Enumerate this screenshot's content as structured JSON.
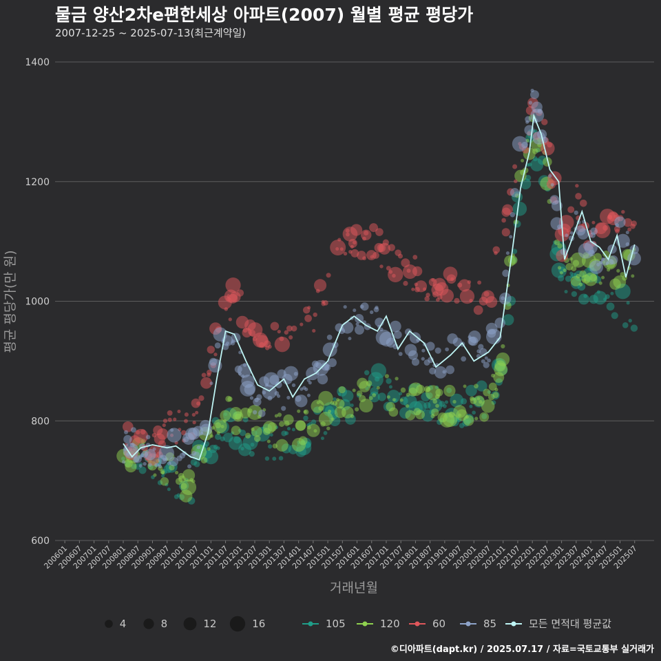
{
  "title": "물금 양산2차e편한세상 아파트(2007) 월별 평균 평당가",
  "subtitle": "2007-12-25 ~ 2025-07-13(최근계약일)",
  "credit": "©디아파트(dapt.kr) / 2025.07.17 / 자료=국토교통부 실거래가",
  "colors": {
    "background": "#2b2b2d",
    "grid": "#5e5e5e",
    "s105": "#1f9e89",
    "s120": "#8fd14f",
    "s60": "#e0575b",
    "s85": "#8ea3c9",
    "avg": "#bff5f5"
  },
  "chart_data": {
    "type": "scatter",
    "xlabel": "거래년월",
    "ylabel": "평균 평당가(만 원)",
    "ylim": [
      600,
      1400
    ],
    "yticks": [
      600,
      800,
      1000,
      1200,
      1400
    ],
    "xlim": [
      "2005-09",
      "2026-03"
    ],
    "xticks": [
      "200601",
      "200607",
      "200701",
      "200707",
      "200801",
      "200807",
      "200901",
      "200907",
      "201001",
      "201007",
      "201101",
      "201107",
      "201201",
      "201207",
      "201301",
      "201307",
      "201401",
      "201407",
      "201501",
      "201507",
      "201601",
      "201607",
      "201701",
      "201707",
      "201801",
      "201807",
      "201901",
      "201907",
      "202001",
      "202007",
      "202101",
      "202107",
      "202201",
      "202207",
      "202301",
      "202307",
      "202401",
      "202407",
      "202501",
      "202507"
    ],
    "grid": "horizontal",
    "size_legend": {
      "title": "",
      "values": [
        4,
        8,
        12,
        16
      ]
    },
    "series": [
      {
        "name": "105",
        "key": "s105",
        "anchors": [
          [
            2008.0,
            760
          ],
          [
            2009.0,
            720
          ],
          [
            2009.8,
            700
          ],
          [
            2010.3,
            690
          ],
          [
            2010.8,
            760
          ],
          [
            2011.5,
            790
          ],
          [
            2012.5,
            770
          ],
          [
            2013.5,
            760
          ],
          [
            2014.5,
            790
          ],
          [
            2015.5,
            820
          ],
          [
            2016.5,
            860
          ],
          [
            2017.5,
            840
          ],
          [
            2018.5,
            830
          ],
          [
            2019.5,
            820
          ],
          [
            2020.5,
            840
          ],
          [
            2021.0,
            900
          ],
          [
            2021.5,
            1150
          ],
          [
            2022.0,
            1270
          ],
          [
            2022.5,
            1210
          ],
          [
            2023.0,
            1040
          ],
          [
            2024.0,
            1030
          ],
          [
            2025.0,
            990
          ],
          [
            2025.5,
            985
          ]
        ]
      },
      {
        "name": "120",
        "key": "s120",
        "anchors": [
          [
            2008.0,
            760
          ],
          [
            2009.0,
            730
          ],
          [
            2009.8,
            710
          ],
          [
            2010.3,
            690
          ],
          [
            2010.8,
            770
          ],
          [
            2011.5,
            810
          ],
          [
            2012.5,
            800
          ],
          [
            2013.5,
            780
          ],
          [
            2014.5,
            800
          ],
          [
            2015.5,
            830
          ],
          [
            2016.5,
            850
          ],
          [
            2017.5,
            840
          ],
          [
            2018.5,
            830
          ],
          [
            2019.5,
            830
          ],
          [
            2020.5,
            830
          ],
          [
            2021.0,
            910
          ],
          [
            2021.5,
            1170
          ],
          [
            2022.0,
            1280
          ],
          [
            2022.5,
            1220
          ],
          [
            2023.0,
            1050
          ],
          [
            2024.0,
            1060
          ],
          [
            2025.0,
            1050
          ],
          [
            2025.5,
            1065
          ]
        ]
      },
      {
        "name": "60",
        "key": "s60",
        "anchors": [
          [
            2008.0,
            760
          ],
          [
            2009.0,
            765
          ],
          [
            2009.8,
            790
          ],
          [
            2010.3,
            780
          ],
          [
            2010.8,
            860
          ],
          [
            2011.3,
            950
          ],
          [
            2011.8,
            1010
          ],
          [
            2012.5,
            950
          ],
          [
            2013.5,
            940
          ],
          [
            2014.5,
            980
          ],
          [
            2015.5,
            1090
          ],
          [
            2016.5,
            1100
          ],
          [
            2017.5,
            1060
          ],
          [
            2018.5,
            1030
          ],
          [
            2019.5,
            1010
          ],
          [
            2020.5,
            1000
          ],
          [
            2021.0,
            1120
          ],
          [
            2021.5,
            1240
          ],
          [
            2022.0,
            1320
          ],
          [
            2022.5,
            1260
          ],
          [
            2023.0,
            1100
          ],
          [
            2023.5,
            1170
          ],
          [
            2024.0,
            1110
          ],
          [
            2024.5,
            1140
          ],
          [
            2025.0,
            1130
          ],
          [
            2025.5,
            1120
          ]
        ]
      },
      {
        "name": "85",
        "key": "s85",
        "anchors": [
          [
            2008.0,
            760
          ],
          [
            2009.0,
            750
          ],
          [
            2009.8,
            760
          ],
          [
            2010.3,
            750
          ],
          [
            2010.8,
            800
          ],
          [
            2011.3,
            930
          ],
          [
            2011.8,
            930
          ],
          [
            2012.5,
            840
          ],
          [
            2013.5,
            850
          ],
          [
            2014.5,
            860
          ],
          [
            2015.5,
            960
          ],
          [
            2016.5,
            990
          ],
          [
            2017.5,
            930
          ],
          [
            2018.5,
            900
          ],
          [
            2019.5,
            910
          ],
          [
            2020.5,
            920
          ],
          [
            2021.0,
            980
          ],
          [
            2021.5,
            1230
          ],
          [
            2022.0,
            1330
          ],
          [
            2022.5,
            1250
          ],
          [
            2023.0,
            1100
          ],
          [
            2023.5,
            1150
          ],
          [
            2024.0,
            1090
          ],
          [
            2024.5,
            1080
          ],
          [
            2025.0,
            1110
          ],
          [
            2025.5,
            1100
          ]
        ]
      },
      {
        "name": "모든 면적대 평균값",
        "key": "avg",
        "line": true,
        "anchors": [
          [
            2008.0,
            762
          ],
          [
            2008.3,
            740
          ],
          [
            2008.6,
            755
          ],
          [
            2009.0,
            760
          ],
          [
            2009.5,
            755
          ],
          [
            2009.8,
            758
          ],
          [
            2010.3,
            740
          ],
          [
            2010.6,
            735
          ],
          [
            2010.9,
            780
          ],
          [
            2011.2,
            870
          ],
          [
            2011.5,
            950
          ],
          [
            2011.8,
            945
          ],
          [
            2012.2,
            900
          ],
          [
            2012.6,
            860
          ],
          [
            2013.0,
            850
          ],
          [
            2013.5,
            870
          ],
          [
            2013.8,
            840
          ],
          [
            2014.2,
            870
          ],
          [
            2014.6,
            880
          ],
          [
            2015.0,
            900
          ],
          [
            2015.5,
            960
          ],
          [
            2015.9,
            975
          ],
          [
            2016.3,
            960
          ],
          [
            2016.7,
            950
          ],
          [
            2017.0,
            975
          ],
          [
            2017.4,
            920
          ],
          [
            2017.8,
            950
          ],
          [
            2018.3,
            930
          ],
          [
            2018.7,
            890
          ],
          [
            2019.2,
            910
          ],
          [
            2019.6,
            930
          ],
          [
            2020.0,
            900
          ],
          [
            2020.5,
            915
          ],
          [
            2020.9,
            940
          ],
          [
            2021.3,
            1080
          ],
          [
            2021.6,
            1190
          ],
          [
            2021.9,
            1250
          ],
          [
            2022.05,
            1310
          ],
          [
            2022.3,
            1280
          ],
          [
            2022.6,
            1220
          ],
          [
            2022.9,
            1200
          ],
          [
            2023.1,
            1070
          ],
          [
            2023.4,
            1110
          ],
          [
            2023.7,
            1150
          ],
          [
            2024.0,
            1100
          ],
          [
            2024.3,
            1090
          ],
          [
            2024.6,
            1070
          ],
          [
            2024.9,
            1110
          ],
          [
            2025.2,
            1040
          ],
          [
            2025.5,
            1095
          ]
        ]
      }
    ]
  }
}
